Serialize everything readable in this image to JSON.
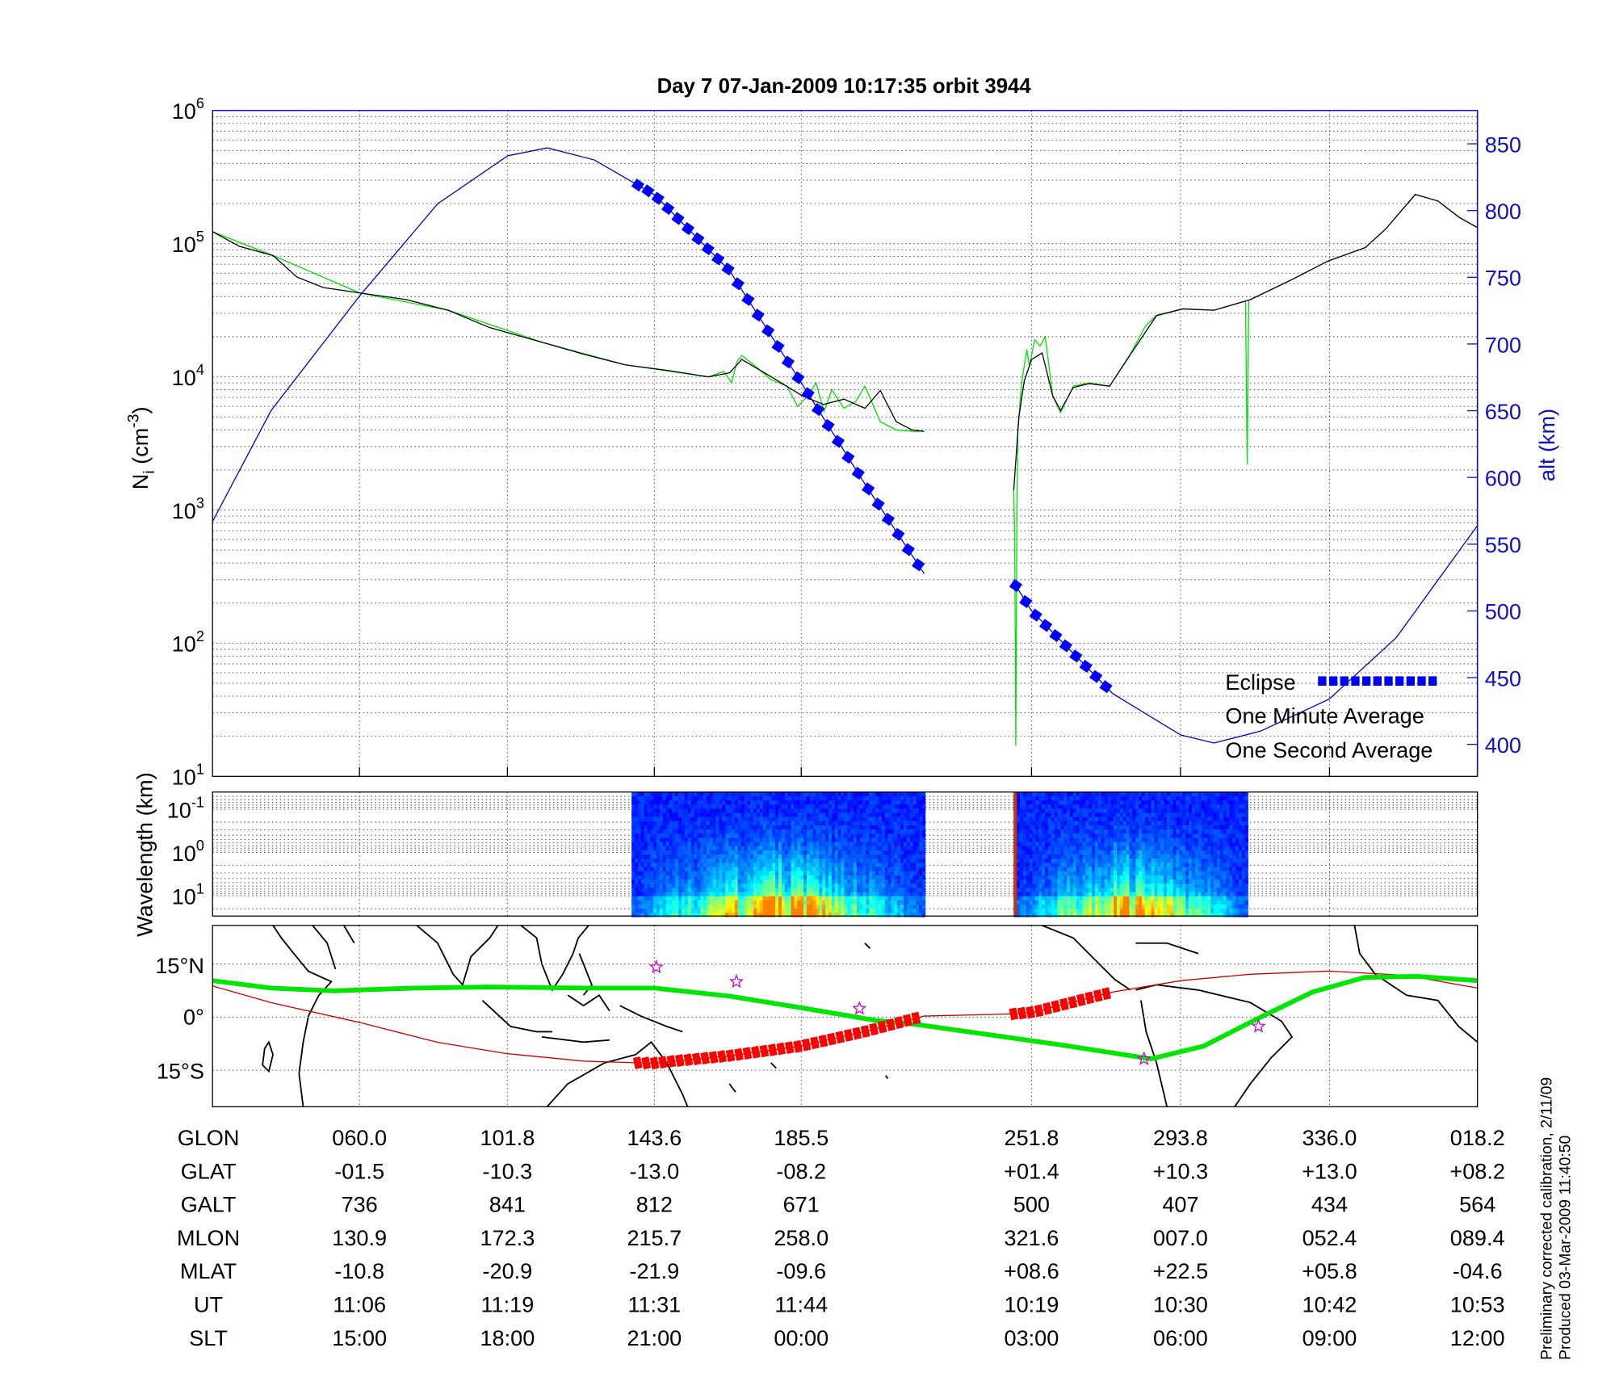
{
  "title": "Day 7  07-Jan-2009 10:17:35   orbit 3944",
  "footer": [
    "Preliminary corrected calibration, 2/11/09",
    "Produced 03-Mar-2009 11:40:50"
  ],
  "chart_data": [
    {
      "type": "line",
      "title": "Day 7  07-Jan-2009 10:17:35   orbit 3944",
      "ylabel": "N_i (cm^-3)",
      "ylabel_base": "N",
      "ylabel_sub": "i",
      "ylabel_unit": " (cm",
      "ylabel_unit_exp": "-3",
      "ylabel_close": ")",
      "y2label": "alt (km)",
      "yscale": "log",
      "ylim": [
        10,
        1000000
      ],
      "yticks_base": "10",
      "yticks_exp": [
        "6",
        "5",
        "4",
        "3",
        "2",
        "1"
      ],
      "y2lim": [
        376,
        875
      ],
      "y2ticks": [
        "850",
        "800",
        "750",
        "700",
        "650",
        "600",
        "550",
        "500",
        "450",
        "400"
      ],
      "xlim": [
        12,
        36
      ],
      "grid": true,
      "legend_position": "bottom-right",
      "series": [
        {
          "name": "One Second Average",
          "color": "#00e000",
          "axis": "left",
          "x": [
            12.0,
            13.15,
            14.79,
            16.47,
            18.25,
            19.83,
            21.41,
            21.7,
            21.85,
            21.95,
            22.04,
            22.3,
            22.6,
            22.9,
            23.1,
            23.3,
            23.45,
            23.6,
            23.75,
            23.98,
            24.2,
            24.38,
            24.67,
            24.97,
            25.27,
            25.5,
            null,
            27.2,
            27.22,
            27.24,
            27.26,
            27.28,
            27.35,
            27.45,
            27.5,
            27.6,
            27.7,
            27.8,
            27.94,
            28.09,
            28.33,
            28.63,
            29.02,
            29.42,
            29.7,
            29.91,
            30.41,
            31.0,
            31.6,
            31.63,
            31.66,
            31.69,
            32.48,
            33.17,
            33.87,
            34.26,
            34.82,
            35.25,
            35.65,
            36.0
          ],
          "y": [
            123000,
            81300,
            42700,
            31600,
            18200,
            12300,
            10000,
            11000,
            9000,
            13000,
            14500,
            12000,
            9500,
            8500,
            6000,
            7200,
            9000,
            5500,
            8000,
            5800,
            6500,
            8500,
            4600,
            4000,
            3900,
            3900,
            null,
            1400,
            600,
            17,
            800,
            4000,
            9000,
            16000,
            12000,
            19000,
            17000,
            20000,
            7200,
            5400,
            8500,
            9000,
            8500,
            15000,
            24000,
            29000,
            32400,
            31600,
            37000,
            2200,
            37500,
            38000,
            53700,
            74100,
            93300,
            129000,
            234000,
            209000,
            158000,
            132000
          ]
        },
        {
          "name": "One Minute Average",
          "color": "#000000",
          "axis": "left",
          "x": [
            12.0,
            12.51,
            13.15,
            13.6,
            14.1,
            14.79,
            15.68,
            16.47,
            17.26,
            18.25,
            19.04,
            19.83,
            20.62,
            21.41,
            21.81,
            22.04,
            22.6,
            23.19,
            23.59,
            23.98,
            24.38,
            24.67,
            24.97,
            25.27,
            25.5,
            null,
            27.2,
            27.3,
            27.4,
            27.54,
            27.74,
            27.94,
            28.09,
            28.33,
            28.63,
            29.02,
            29.42,
            29.91,
            30.41,
            31.0,
            31.69,
            32.48,
            33.17,
            33.87,
            34.26,
            34.82,
            35.25,
            35.65,
            36.0
          ],
          "y": [
            123000,
            95500,
            81300,
            56200,
            46800,
            42700,
            38000,
            31600,
            23400,
            18200,
            14800,
            12300,
            11200,
            10000,
            10700,
            13500,
            10000,
            7200,
            6200,
            6800,
            5800,
            7900,
            4600,
            4000,
            3900,
            null,
            1400,
            5000,
            9300,
            13500,
            15100,
            7200,
            5600,
            8300,
            8900,
            8500,
            14800,
            28800,
            32400,
            31600,
            38000,
            53700,
            74100,
            93300,
            129000,
            234000,
            209000,
            158000,
            132000
          ]
        },
        {
          "color": "#0000cc",
          "axis": "right",
          "x": [
            12.0,
            13.11,
            14.79,
            16.27,
            17.6,
            18.35,
            19.24,
            20.38,
            21.81,
            23.17,
            24.38,
            25.5,
            null,
            27.24,
            27.54,
            29.08,
            30.37,
            31.0,
            31.89,
            33.19,
            34.46,
            36.0
          ],
          "y": [
            567,
            650,
            736,
            805,
            841,
            847,
            838,
            812,
            755,
            671,
            595,
            528,
            null,
            519,
            500,
            438,
            407,
            401,
            410,
            434,
            480,
            564
          ]
        }
      ],
      "eclipse": {
        "name": "Eclipse",
        "color": "#0000ff",
        "intervals": [
          [
            20.07,
            25.5
          ],
          [
            27.24,
            29.08
          ]
        ]
      },
      "legend": [
        {
          "label": "Eclipse",
          "color": "#1a1acc"
        },
        {
          "label": "One Minute Average",
          "color": "#000000"
        },
        {
          "label": "One Second Average",
          "color": "#00e000"
        }
      ]
    },
    {
      "type": "heatmap",
      "ylabel": "Wavelength (km)",
      "yscale": "log",
      "yticks_base": "10",
      "yticks_exp": [
        "-1",
        "0",
        "1"
      ],
      "colormap": "jet",
      "data_intervals": [
        [
          19.95,
          25.5
        ],
        [
          27.2,
          31.61
        ]
      ]
    },
    {
      "type": "map",
      "lat_ticks": [
        "15°N",
        "0°",
        "15°S"
      ],
      "lon_range": [
        18.2,
        378.2
      ],
      "lat_range": [
        -25.9,
        25.9
      ],
      "series": [
        {
          "color": "#cc0000",
          "lonlat": [
            [
              18.2,
              8.8
            ],
            [
              34.8,
              4.1
            ],
            [
              60.0,
              -1.5
            ],
            [
              82.2,
              -7.1
            ],
            [
              101.8,
              -10.3
            ],
            [
              123.8,
              -12.4
            ],
            [
              139.2,
              -12.9
            ],
            [
              143.6,
              -13.0
            ],
            [
              165.3,
              -10.9
            ],
            [
              185.5,
              -8.2
            ],
            [
              203.8,
              -4.1
            ],
            [
              220.7,
              0.3
            ],
            [
              246.2,
              0.9
            ],
            [
              251.8,
              1.4
            ],
            [
              274.4,
              7.1
            ],
            [
              293.8,
              10.3
            ],
            [
              313.5,
              12.1
            ],
            [
              336.0,
              13.0
            ],
            [
              357.8,
              11.8
            ],
            [
              18.2,
              8.2
            ]
          ]
        },
        {
          "color": "#00e600",
          "lonlat": [
            [
              18.2,
              10.3
            ],
            [
              34.8,
              8.2
            ],
            [
              52.6,
              7.4
            ],
            [
              76.3,
              8.2
            ],
            [
              97.1,
              8.5
            ],
            [
              123.8,
              8.2
            ],
            [
              143.9,
              8.2
            ],
            [
              165.3,
              5.9
            ],
            [
              186.0,
              2.6
            ],
            [
              206.8,
              -0.9
            ],
            [
              218.6,
              -2.1
            ],
            [
              239.4,
              -5.0
            ],
            [
              260.2,
              -7.9
            ],
            [
              285.3,
              -11.8
            ],
            [
              300.2,
              -8.2
            ],
            [
              316.5,
              0.0
            ],
            [
              331.3,
              7.1
            ],
            [
              346.1,
              11.2
            ],
            [
              1.0,
              11.5
            ],
            [
              18.2,
              10.3
            ]
          ]
        }
      ],
      "eclipse": {
        "color": "#ff0000",
        "lon_intervals": [
          [
            139.2,
            220.7
          ],
          [
            246.2,
            274.4
          ]
        ]
      },
      "stars": {
        "color": "#cc00cc",
        "lonlat": [
          [
            144.5,
            14.1
          ],
          [
            167.3,
            10.0
          ],
          [
            202.3,
            2.4
          ],
          [
            283.3,
            -11.8
          ],
          [
            315.9,
            -2.6
          ]
        ]
      }
    }
  ],
  "table": {
    "rows": [
      {
        "label": "GLON",
        "values": [
          "060.0",
          "101.8",
          "143.6",
          "185.5",
          "251.8",
          "293.8",
          "336.0",
          "018.2"
        ]
      },
      {
        "label": "GLAT",
        "values": [
          "-01.5",
          "-10.3",
          "-13.0",
          "-08.2",
          "+01.4",
          "+10.3",
          "+13.0",
          "+08.2"
        ]
      },
      {
        "label": "GALT",
        "values": [
          "736",
          "841",
          "812",
          "671",
          "500",
          "407",
          "434",
          "564"
        ]
      },
      {
        "label": "MLON",
        "values": [
          "130.9",
          "172.3",
          "215.7",
          "258.0",
          "321.6",
          "007.0",
          "052.4",
          "089.4"
        ]
      },
      {
        "label": "MLAT",
        "values": [
          "-10.8",
          "-20.9",
          "-21.9",
          "-09.6",
          "+08.6",
          "+22.5",
          "+05.8",
          "-04.6"
        ]
      },
      {
        "label": "UT",
        "values": [
          "11:06",
          "11:19",
          "11:31",
          "11:44",
          "10:19",
          "10:30",
          "10:42",
          "10:53"
        ]
      },
      {
        "label": "SLT",
        "values": [
          "15:00",
          "18:00",
          "21:00",
          "00:00",
          "03:00",
          "06:00",
          "09:00",
          "12:00"
        ]
      }
    ]
  }
}
